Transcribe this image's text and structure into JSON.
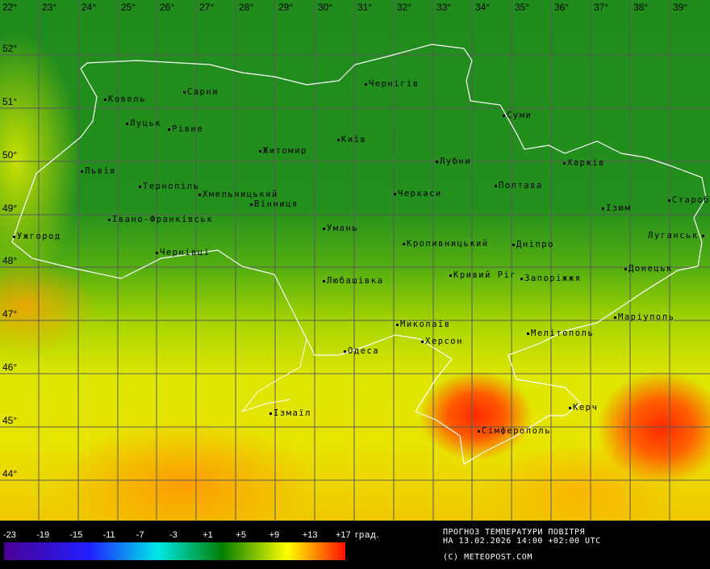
{
  "map": {
    "longitudes": [
      "22°",
      "23°",
      "24°",
      "25°",
      "26°",
      "27°",
      "28°",
      "29°",
      "30°",
      "31°",
      "32°",
      "33°",
      "34°",
      "35°",
      "36°",
      "37°",
      "38°",
      "39°"
    ],
    "latitudes": [
      "52°",
      "51°",
      "50°",
      "49°",
      "48°",
      "47°",
      "46°",
      "45°",
      "44°"
    ],
    "cities": [
      "Ковель",
      "Сарни",
      "Луцьк",
      "Рівне",
      "Житомир",
      "Київ",
      "Чернігів",
      "Суми",
      "Львів",
      "Тернопіль",
      "Хмельницький",
      "Вінниця",
      "Черкаси",
      "Лубни",
      "Полтава",
      "Харків",
      "Старобільськ",
      "Ізюм",
      "Луганськ",
      "Івано-Франківськ",
      "Ужгород",
      "Умань",
      "Кропивницький",
      "Дніпро",
      "Чернівці",
      "Любашівка",
      "Кривий Ріг",
      "Запоріжжя",
      "Донецьк",
      "Маріуполь",
      "Миколаїв",
      "Мелітополь",
      "Херсон",
      "Одеса",
      "Ізмаїл",
      "Керч",
      "Сімферополь"
    ]
  },
  "legend": {
    "ticks": [
      "-23",
      "-19",
      "-15",
      "-11",
      "-7",
      "-3",
      "+1",
      "+5",
      "+9",
      "+13",
      "+17"
    ],
    "unit": "град.",
    "colors": [
      "#4b0096",
      "#2020ff",
      "#00e8e8",
      "#008000",
      "#ffff00",
      "#ff1000"
    ]
  },
  "info": {
    "title": "ПРОГНОЗ ТЕМПЕРАТУРИ ПОВІТРЯ",
    "date": "НА 13.02.2026 14:00 +02:00 UTC",
    "copyright": "(C) METEOPOST.COM"
  }
}
